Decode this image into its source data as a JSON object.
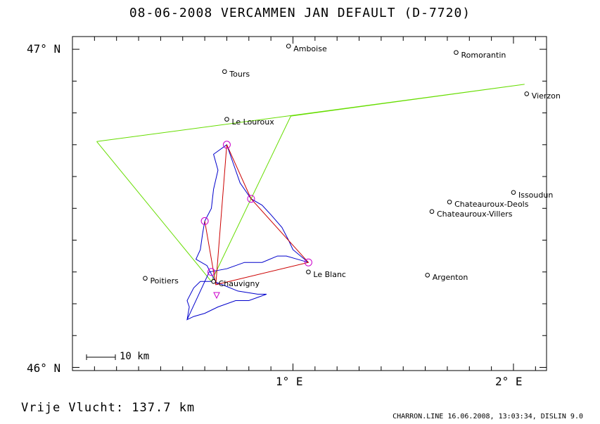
{
  "header": {
    "title": "08-06-2008    VERCAMMEN JAN    DEFAULT (D-7720)"
  },
  "axes": {
    "y_labels": [
      {
        "text": "47° N",
        "lat": 47.0
      },
      {
        "text": "46° N",
        "lat": 46.0
      }
    ],
    "x_labels": [
      {
        "text": "1° E",
        "lon": 1.0
      },
      {
        "text": "2° E",
        "lon": 2.0
      }
    ],
    "lon_range": [
      0.0,
      2.15
    ],
    "lat_range": [
      45.99,
      47.04
    ]
  },
  "places": [
    {
      "name": "Amboise",
      "lon": 0.98,
      "lat": 47.01
    },
    {
      "name": "Romorantin",
      "lon": 1.74,
      "lat": 46.99
    },
    {
      "name": "Tours",
      "lon": 0.69,
      "lat": 46.93
    },
    {
      "name": "Vierzon",
      "lon": 2.06,
      "lat": 46.86
    },
    {
      "name": "Le Louroux",
      "lon": 0.7,
      "lat": 46.78
    },
    {
      "name": "Issoudun",
      "lon": 2.0,
      "lat": 46.55
    },
    {
      "name": "Chateauroux-Deols",
      "lon": 1.71,
      "lat": 46.52
    },
    {
      "name": "Chateauroux-Villers",
      "lon": 1.63,
      "lat": 46.49
    },
    {
      "name": "Le Blanc",
      "lon": 1.07,
      "lat": 46.3
    },
    {
      "name": "Poitiers",
      "lon": 0.33,
      "lat": 46.28
    },
    {
      "name": "Argenton",
      "lon": 1.61,
      "lat": 46.29
    },
    {
      "name": "Chauvigny",
      "lon": 0.64,
      "lat": 46.27
    }
  ],
  "turnpoints": [
    {
      "lon": 0.7,
      "lat": 46.7
    },
    {
      "lon": 0.81,
      "lat": 46.53
    },
    {
      "lon": 1.07,
      "lat": 46.33
    },
    {
      "lon": 0.6,
      "lat": 46.46
    },
    {
      "lon": 0.63,
      "lat": 46.3
    }
  ],
  "green_polygon": [
    {
      "lon": 0.11,
      "lat": 46.71
    },
    {
      "lon": 2.05,
      "lat": 46.89
    },
    {
      "lon": 0.99,
      "lat": 46.79
    },
    {
      "lon": 0.63,
      "lat": 46.27
    }
  ],
  "red_task": [
    {
      "lon": 0.65,
      "lat": 46.26
    },
    {
      "lon": 0.7,
      "lat": 46.7
    },
    {
      "lon": 0.81,
      "lat": 46.53
    },
    {
      "lon": 1.07,
      "lat": 46.33
    },
    {
      "lon": 0.65,
      "lat": 46.26
    },
    {
      "lon": 0.6,
      "lat": 46.46
    },
    {
      "lon": 0.65,
      "lat": 46.26
    }
  ],
  "blue_track": [
    {
      "lon": 0.52,
      "lat": 46.15
    },
    {
      "lon": 0.53,
      "lat": 46.19
    },
    {
      "lon": 0.52,
      "lat": 46.21
    },
    {
      "lon": 0.55,
      "lat": 46.25
    },
    {
      "lon": 0.58,
      "lat": 46.27
    },
    {
      "lon": 0.64,
      "lat": 46.27
    },
    {
      "lon": 0.68,
      "lat": 46.26
    },
    {
      "lon": 0.75,
      "lat": 46.24
    },
    {
      "lon": 0.84,
      "lat": 46.23
    },
    {
      "lon": 0.88,
      "lat": 46.23
    },
    {
      "lon": 0.8,
      "lat": 46.21
    },
    {
      "lon": 0.74,
      "lat": 46.21
    },
    {
      "lon": 0.66,
      "lat": 46.19
    },
    {
      "lon": 0.6,
      "lat": 46.17
    },
    {
      "lon": 0.55,
      "lat": 46.16
    },
    {
      "lon": 0.52,
      "lat": 46.15
    },
    {
      "lon": 0.62,
      "lat": 46.3
    },
    {
      "lon": 0.7,
      "lat": 46.31
    },
    {
      "lon": 0.78,
      "lat": 46.33
    },
    {
      "lon": 0.86,
      "lat": 46.33
    },
    {
      "lon": 0.93,
      "lat": 46.35
    },
    {
      "lon": 0.97,
      "lat": 46.35
    },
    {
      "lon": 1.02,
      "lat": 46.34
    },
    {
      "lon": 1.07,
      "lat": 46.33
    },
    {
      "lon": 1.0,
      "lat": 46.37
    },
    {
      "lon": 0.98,
      "lat": 46.4
    },
    {
      "lon": 0.95,
      "lat": 46.44
    },
    {
      "lon": 0.9,
      "lat": 46.48
    },
    {
      "lon": 0.86,
      "lat": 46.51
    },
    {
      "lon": 0.81,
      "lat": 46.53
    },
    {
      "lon": 0.76,
      "lat": 46.58
    },
    {
      "lon": 0.73,
      "lat": 46.64
    },
    {
      "lon": 0.7,
      "lat": 46.7
    },
    {
      "lon": 0.64,
      "lat": 46.67
    },
    {
      "lon": 0.66,
      "lat": 46.62
    },
    {
      "lon": 0.64,
      "lat": 46.56
    },
    {
      "lon": 0.63,
      "lat": 46.5
    },
    {
      "lon": 0.6,
      "lat": 46.46
    },
    {
      "lon": 0.59,
      "lat": 46.42
    },
    {
      "lon": 0.58,
      "lat": 46.37
    },
    {
      "lon": 0.56,
      "lat": 46.34
    },
    {
      "lon": 0.61,
      "lat": 46.32
    },
    {
      "lon": 0.64,
      "lat": 46.28
    },
    {
      "lon": 0.66,
      "lat": 46.26
    }
  ],
  "scale_bar": {
    "label": "10 km"
  },
  "footer": {
    "distance_label": "Vrije Vlucht:  137.7 km",
    "meta": "CHARRON.LINE 16.06.2008, 13:03:34, DISLIN 9.0"
  },
  "colors": {
    "track": "#0000cc",
    "task": "#cc0000",
    "sector": "#66dd00",
    "turnpoint": "#cc00cc",
    "frame": "#000000"
  }
}
